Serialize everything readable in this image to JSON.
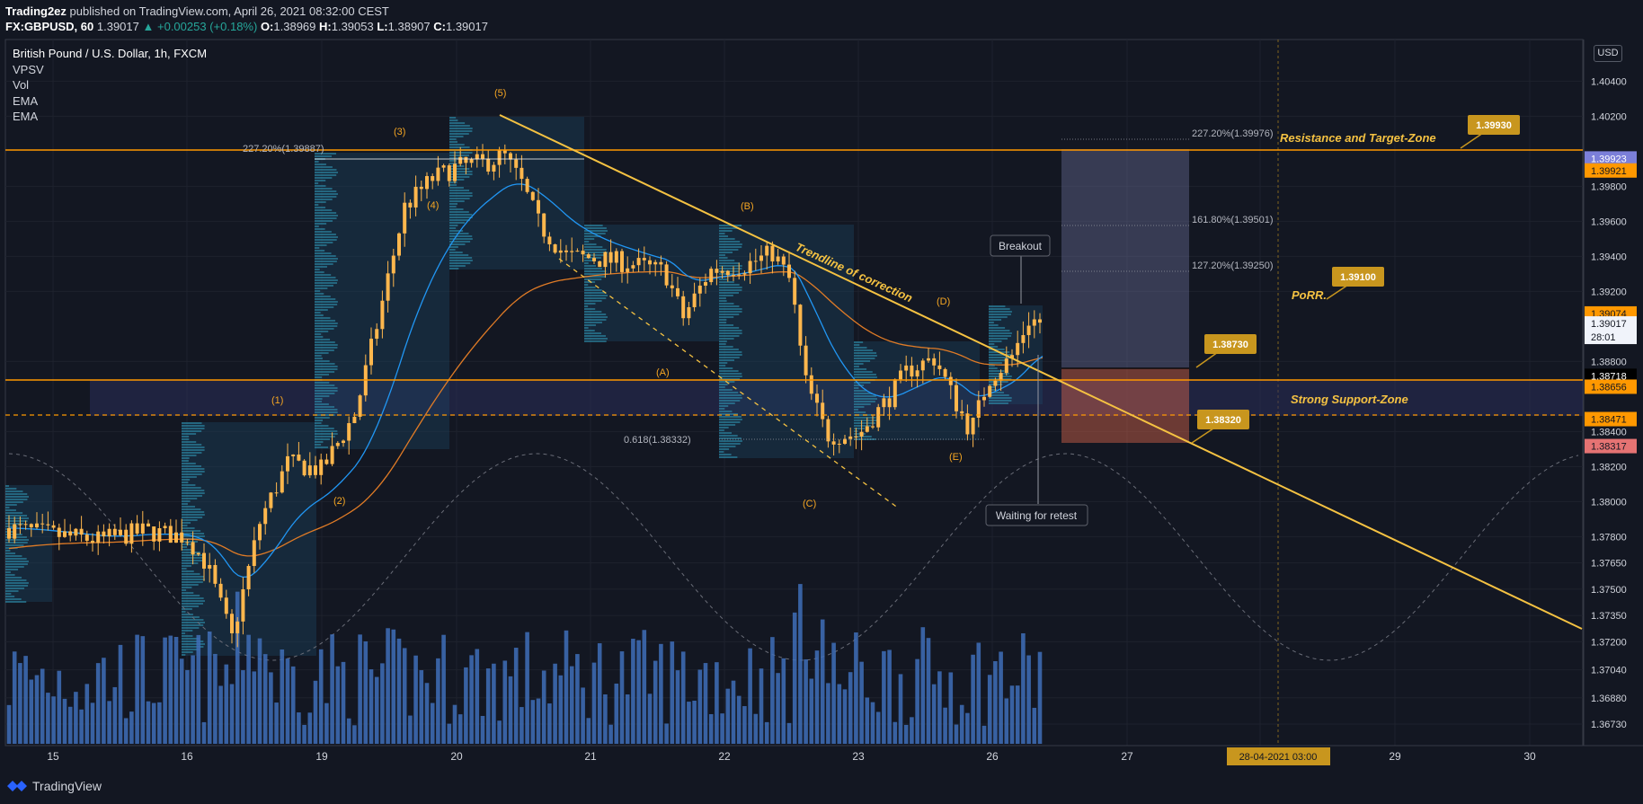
{
  "header": {
    "publisher": "Trading2ez",
    "published_text": "published on TradingView.com, April 26, 2021 08:32:00 CEST",
    "symbol": "FX:GBPUSD, 60",
    "last": "1.39017",
    "change": "+0.00253 (+0.18%)",
    "ohlc": [
      {
        "k": "O:",
        "v": "1.38969"
      },
      {
        "k": "H:",
        "v": "1.39053"
      },
      {
        "k": "L:",
        "v": "1.38907"
      },
      {
        "k": "C:",
        "v": "1.39017"
      }
    ]
  },
  "legend": [
    "British Pound / U.S. Dollar, 1h, FXCM",
    "VPSV",
    "Vol",
    "EMA",
    "EMA"
  ],
  "currency_button": "USD",
  "footer": {
    "brand": "TradingView"
  },
  "colors": {
    "background": "#131722",
    "annotation": "#f5c242",
    "horizontal_level": "#ff9800",
    "candle": "#ffb74d",
    "ema_fast": "#2196f3",
    "ema_slow": "#e07b26",
    "volume": "#3f6eb8",
    "zone": "#2a2e5a"
  },
  "chart_data": {
    "type": "candlestick",
    "title": "British Pound / U.S. Dollar, 1h, FXCM",
    "x_tick_labels": [
      "15",
      "16",
      "19",
      "20",
      "21",
      "22",
      "23",
      "26",
      "27",
      "28-04-2021   03:00",
      "29",
      "30"
    ],
    "y_tick_labels": [
      "1.40400",
      "1.40200",
      "1.39800",
      "1.39600",
      "1.39400",
      "1.39200",
      "1.38800",
      "1.38400",
      "1.38200",
      "1.38000",
      "1.37800",
      "1.37650",
      "1.37500",
      "1.37350",
      "1.37200",
      "1.37040",
      "1.36880",
      "1.36730"
    ],
    "y_range": [
      1.3662,
      1.4063
    ],
    "price_tags": [
      {
        "value": "1.39923",
        "style": "purple"
      },
      {
        "value": "1.39921",
        "style": "orange"
      },
      {
        "value": "1.39074",
        "style": "orange"
      },
      {
        "value": "1.39017",
        "style": "light"
      },
      {
        "value": "28:01",
        "style": "light"
      },
      {
        "value": "1.38718",
        "style": "black"
      },
      {
        "value": "1.38656",
        "style": "orange"
      },
      {
        "value": "1.38471",
        "style": "orange"
      },
      {
        "value": "1.38317",
        "style": "red"
      }
    ],
    "horizontal_levels": [
      {
        "price": 1.39921,
        "style": "solid"
      },
      {
        "price": 1.38656,
        "style": "solid"
      },
      {
        "price": 1.38471,
        "style": "dashed"
      }
    ],
    "fib_levels": [
      {
        "label": "227.20%(1.39976)"
      },
      {
        "label": "161.80%(1.39501)"
      },
      {
        "label": "127.20%(1.39250)"
      },
      {
        "label": "227.20%(1.39887)"
      },
      {
        "label": "0.618(1.38332)"
      }
    ],
    "wave_labels": [
      "(1)",
      "(2)",
      "(3)",
      "(4)",
      "(5)",
      "(A)",
      "(B)",
      "(C)",
      "(D)",
      "(E)"
    ],
    "annotations": {
      "trendline": "Trendline of correction",
      "resistance": "Resistance and Target-Zone",
      "support": "Strong Support-Zone",
      "porr": "PoRR.",
      "breakout": "Breakout",
      "retest": "Waiting for retest"
    },
    "price_callouts": [
      "1.39930",
      "1.39100",
      "1.38730",
      "1.38320"
    ],
    "indicators": [
      "VPSV",
      "Vol",
      "EMA",
      "EMA"
    ]
  }
}
